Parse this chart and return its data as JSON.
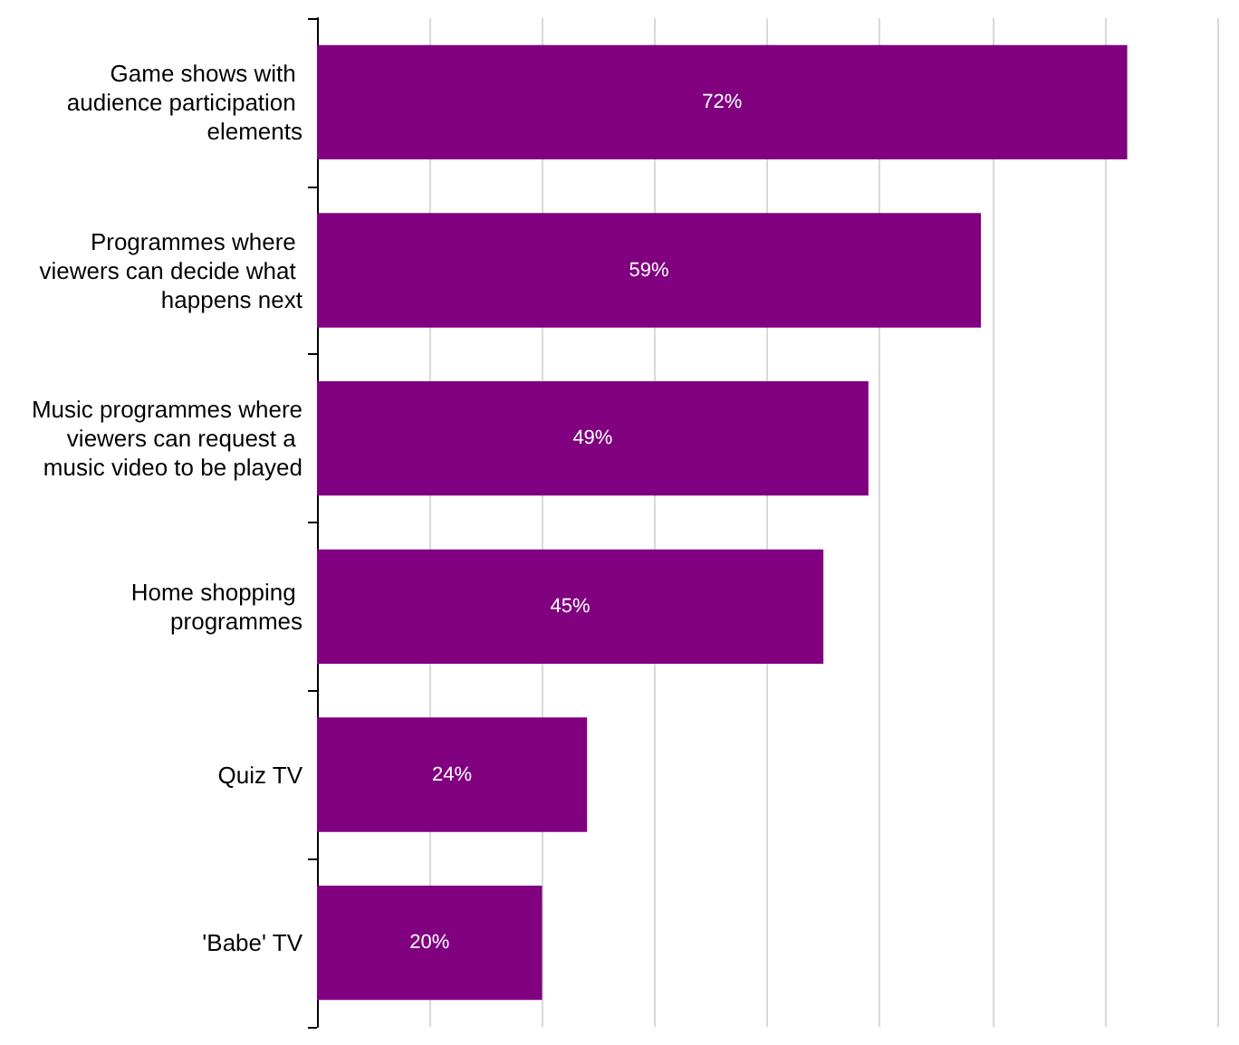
{
  "chart_data": {
    "type": "bar",
    "orientation": "horizontal",
    "categories": [
      "Game shows with audience participation elements",
      "Programmes where viewers can decide what happens next",
      "Music programmes where viewers can request a music video to be played",
      "Home shopping programmes",
      "Quiz TV",
      "'Babe' TV"
    ],
    "values": [
      72,
      59,
      49,
      45,
      24,
      20
    ],
    "value_labels": [
      "72%",
      "59%",
      "49%",
      "45%",
      "24%",
      "20%"
    ],
    "color": "#800080",
    "xlim": [
      0,
      80
    ],
    "xticks": [
      {
        "value": 0,
        "label": null
      },
      {
        "value": 10,
        "label": null
      },
      {
        "value": 20,
        "label": null
      },
      {
        "value": 30,
        "label": null
      },
      {
        "value": 40,
        "label": null
      },
      {
        "value": 50,
        "label": null
      },
      {
        "value": 60,
        "label": null
      },
      {
        "value": 70,
        "label": null
      },
      {
        "value": 80,
        "label": null
      }
    ],
    "grid": "x"
  }
}
